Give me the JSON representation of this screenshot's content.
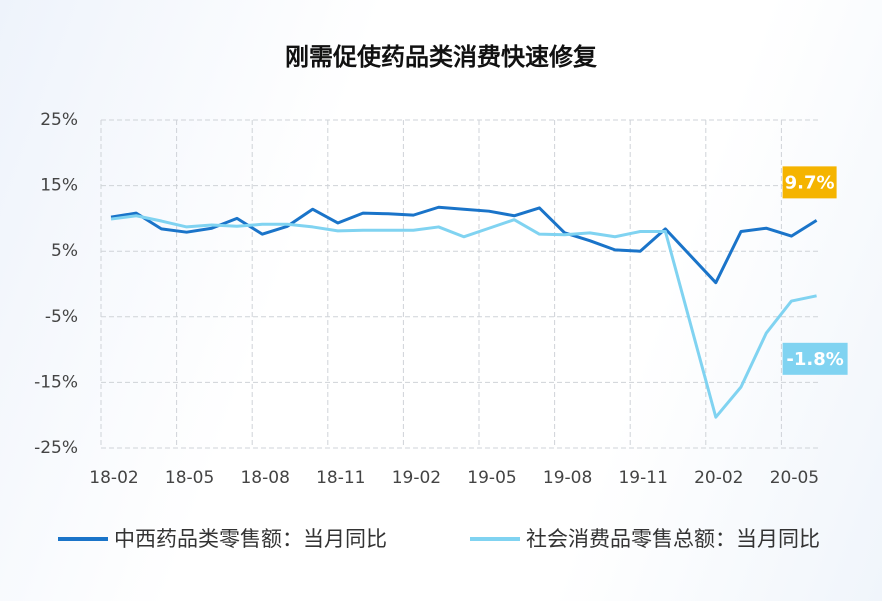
{
  "chart_data": {
    "type": "line",
    "title": "刚需促使药品类消费快速修复",
    "categories": [
      "18-02",
      null,
      null,
      "18-05",
      null,
      null,
      "18-08",
      null,
      null,
      "18-11",
      null,
      null,
      "19-02",
      null,
      null,
      "19-05",
      null,
      null,
      "19-08",
      null,
      null,
      "19-11",
      null,
      null,
      "20-02",
      null,
      null,
      "20-05",
      null
    ],
    "series": [
      {
        "name": "中西药品类零售额：当月同比",
        "color": "#1a74c9",
        "values": [
          10.2,
          10.8,
          8.4,
          7.9,
          8.5,
          10.0,
          7.6,
          8.8,
          11.4,
          9.3,
          10.8,
          10.7,
          10.5,
          11.7,
          11.4,
          11.1,
          10.4,
          11.6,
          7.8,
          6.6,
          5.2,
          5.0,
          8.4,
          null,
          0.2,
          8.0,
          8.5,
          7.3,
          9.7
        ],
        "value_labels": [
          null,
          null,
          null,
          null,
          null,
          null,
          null,
          null,
          null,
          null,
          null,
          null,
          null,
          null,
          null,
          null,
          null,
          null,
          null,
          null,
          null,
          null,
          null,
          null,
          null,
          null,
          null,
          null,
          "9.7%"
        ],
        "label_color": "#f5b400"
      },
      {
        "name": "社会消费品零售总额：当月同比",
        "color": "#80d3f1",
        "values": [
          9.9,
          10.4,
          9.6,
          8.7,
          9.0,
          8.8,
          9.1,
          9.1,
          8.7,
          8.1,
          8.2,
          8.2,
          8.2,
          8.7,
          7.2,
          8.5,
          9.8,
          7.6,
          7.5,
          7.8,
          7.2,
          8.0,
          8.0,
          null,
          -20.3,
          -15.7,
          -7.5,
          -2.6,
          -1.8
        ],
        "value_labels": [
          null,
          null,
          null,
          null,
          null,
          null,
          null,
          null,
          null,
          null,
          null,
          null,
          null,
          null,
          null,
          null,
          null,
          null,
          null,
          null,
          null,
          null,
          null,
          null,
          null,
          null,
          null,
          null,
          "-1.8%"
        ],
        "label_color": "#80d3f1"
      }
    ],
    "ylim": [
      -25,
      25
    ],
    "yticks": [
      {
        "value": -25,
        "label": "-25%"
      },
      {
        "value": -15,
        "label": "-15%"
      },
      {
        "value": -5,
        "label": "-5%"
      },
      {
        "value": 5,
        "label": "5%"
      },
      {
        "value": 15,
        "label": "15%"
      },
      {
        "value": 25,
        "label": "25%"
      }
    ],
    "grid": true
  }
}
